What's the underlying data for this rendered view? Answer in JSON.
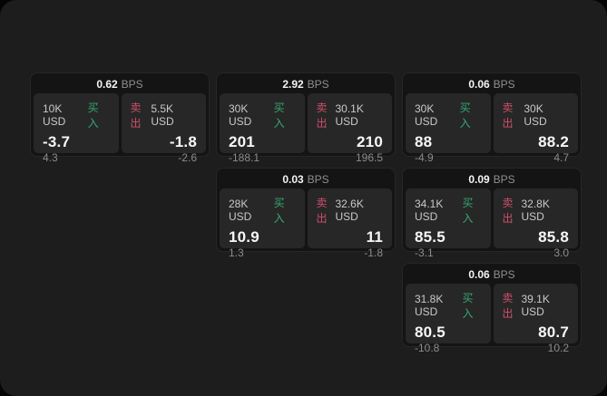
{
  "labels": {
    "buy": "买入",
    "sell": "卖出",
    "bps_unit": "BPS"
  },
  "colors": {
    "buy_green": "#35a873",
    "sell_red": "#cf4f6a",
    "panel_bg": "#1d1d1d",
    "card_bg": "#141414",
    "tile_bg": "#272727"
  },
  "cards": [
    {
      "bps": "0.62",
      "buy": {
        "notional": "10K USD",
        "price": "-3.7",
        "delta": "4.3"
      },
      "sell": {
        "notional": "5.5K USD",
        "price": "-1.8",
        "delta": "-2.6"
      }
    },
    {
      "bps": "2.92",
      "buy": {
        "notional": "30K USD",
        "price": "201",
        "delta": "-188.1"
      },
      "sell": {
        "notional": "30.1K USD",
        "price": "210",
        "delta": "196.5"
      }
    },
    {
      "bps": "0.06",
      "buy": {
        "notional": "30K USD",
        "price": "88",
        "delta": "-4.9"
      },
      "sell": {
        "notional": "30K USD",
        "price": "88.2",
        "delta": "4.7"
      }
    },
    {
      "bps": "0.03",
      "buy": {
        "notional": "28K USD",
        "price": "10.9",
        "delta": "1.3"
      },
      "sell": {
        "notional": "32.6K USD",
        "price": "11",
        "delta": "-1.8"
      }
    },
    {
      "bps": "0.09",
      "buy": {
        "notional": "34.1K USD",
        "price": "85.5",
        "delta": "-3.1"
      },
      "sell": {
        "notional": "32.8K USD",
        "price": "85.8",
        "delta": "3.0"
      }
    },
    {
      "bps": "0.06",
      "buy": {
        "notional": "31.8K USD",
        "price": "80.5",
        "delta": "-10.8"
      },
      "sell": {
        "notional": "39.1K USD",
        "price": "80.7",
        "delta": "10.2"
      }
    }
  ]
}
